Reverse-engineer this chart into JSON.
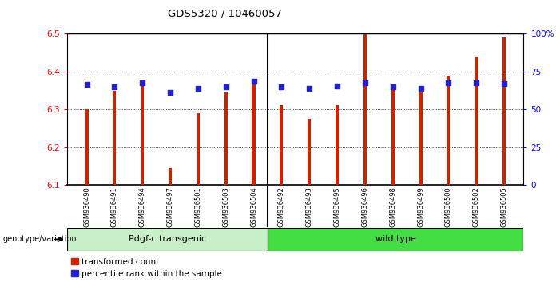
{
  "title": "GDS5320 / 10460057",
  "samples": [
    "GSM936490",
    "GSM936491",
    "GSM936494",
    "GSM936497",
    "GSM936501",
    "GSM936503",
    "GSM936504",
    "GSM936492",
    "GSM936493",
    "GSM936495",
    "GSM936496",
    "GSM936498",
    "GSM936499",
    "GSM936500",
    "GSM936502",
    "GSM936505"
  ],
  "bar_values": [
    6.3,
    6.35,
    6.365,
    6.145,
    6.29,
    6.345,
    6.38,
    6.31,
    6.275,
    6.31,
    6.5,
    6.355,
    6.345,
    6.39,
    6.44,
    6.49
  ],
  "dot_values": [
    6.365,
    6.36,
    6.37,
    6.345,
    6.355,
    6.36,
    6.375,
    6.36,
    6.355,
    6.362,
    6.37,
    6.36,
    6.355,
    6.37,
    6.37,
    6.368
  ],
  "group1_label": "Pdgf-c transgenic",
  "group2_label": "wild type",
  "group1_count": 7,
  "group2_count": 9,
  "genotype_label": "genotype/variation",
  "ymin": 6.1,
  "ymax": 6.5,
  "yticks": [
    6.1,
    6.2,
    6.3,
    6.4,
    6.5
  ],
  "bar_color": "#cc2200",
  "dot_color": "#2222cc",
  "group1_color": "#c8f0c8",
  "group2_color": "#44dd44",
  "legend_red": "transformed count",
  "legend_blue": "percentile rank within the sample",
  "background_color": "#ffffff",
  "xtick_area_color": "#d0d0d0",
  "right_yticks_pct": [
    0,
    25,
    50,
    75,
    100
  ],
  "right_yticklabels": [
    "0",
    "25",
    "50",
    "75",
    "100%"
  ]
}
